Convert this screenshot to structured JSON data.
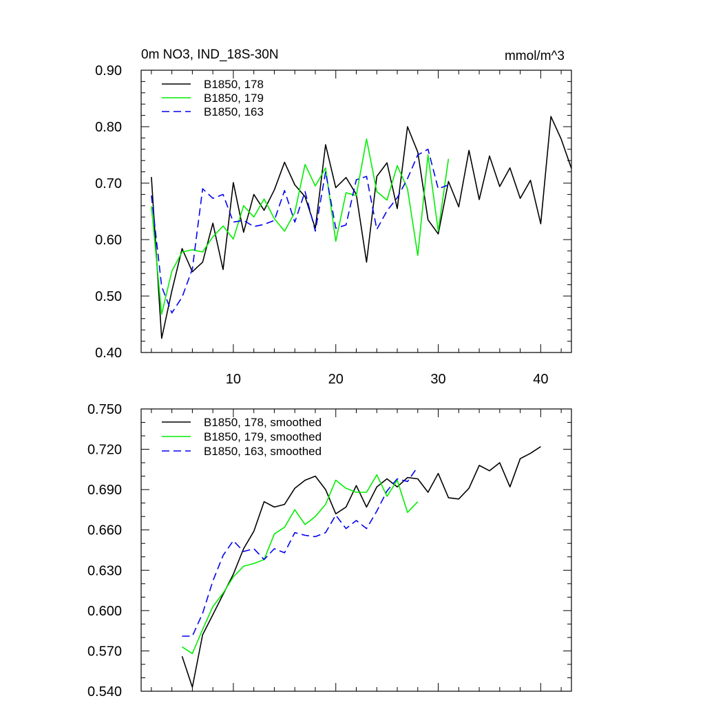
{
  "chart_data": [
    {
      "type": "line",
      "title": "0m NO3, IND_18S-30N",
      "units": "mmol/m^3",
      "xlabel": "",
      "ylabel": "",
      "xlim": [
        1,
        43
      ],
      "ylim": [
        0.4,
        0.9
      ],
      "xticks": [
        10,
        20,
        30,
        40
      ],
      "xtick_labels": [
        "10",
        "20",
        "30",
        "40"
      ],
      "yticks": [
        0.4,
        0.5,
        0.6,
        0.7,
        0.8,
        0.9
      ],
      "ytick_labels": [
        "0.40",
        "0.50",
        "0.60",
        "0.70",
        "0.80",
        "0.90"
      ],
      "legend": "top-left",
      "series": [
        {
          "name": "B1850, 178",
          "color": "#000000",
          "dash": "solid",
          "x": [
            2,
            3,
            4,
            5,
            6,
            7,
            8,
            9,
            10,
            11,
            12,
            13,
            14,
            15,
            16,
            17,
            18,
            19,
            20,
            21,
            22,
            23,
            24,
            25,
            26,
            27,
            28,
            29,
            30,
            31,
            32,
            33,
            34,
            35,
            36,
            37,
            38,
            39,
            40,
            41,
            42,
            43
          ],
          "values": [
            0.711,
            0.425,
            0.509,
            0.584,
            0.543,
            0.56,
            0.629,
            0.547,
            0.701,
            0.613,
            0.68,
            0.652,
            0.688,
            0.737,
            0.697,
            0.676,
            0.62,
            0.768,
            0.692,
            0.71,
            0.68,
            0.56,
            0.712,
            0.736,
            0.655,
            0.8,
            0.755,
            0.635,
            0.61,
            0.703,
            0.658,
            0.758,
            0.671,
            0.748,
            0.694,
            0.727,
            0.673,
            0.705,
            0.628,
            0.818,
            0.778,
            0.726
          ]
        },
        {
          "name": "B1850, 179",
          "color": "#00ee00",
          "dash": "solid",
          "x": [
            2,
            3,
            4,
            5,
            6,
            7,
            8,
            9,
            10,
            11,
            12,
            13,
            14,
            15,
            16,
            17,
            18,
            19,
            20,
            21,
            22,
            23,
            24,
            25,
            26,
            27,
            28,
            29,
            30,
            31
          ],
          "values": [
            0.659,
            0.468,
            0.544,
            0.578,
            0.582,
            0.578,
            0.605,
            0.624,
            0.601,
            0.66,
            0.64,
            0.672,
            0.637,
            0.615,
            0.648,
            0.733,
            0.695,
            0.727,
            0.597,
            0.683,
            0.678,
            0.778,
            0.685,
            0.67,
            0.731,
            0.69,
            0.572,
            0.75,
            0.615,
            0.743
          ]
        },
        {
          "name": "B1850, 163",
          "color": "#0000ee",
          "dash": "dashed",
          "x": [
            2,
            3,
            4,
            5,
            6,
            7,
            8,
            9,
            10,
            11,
            12,
            13,
            14,
            15,
            16,
            17,
            18,
            19,
            20,
            21,
            22,
            23,
            24,
            25,
            26,
            27,
            28,
            29,
            30,
            31
          ],
          "values": [
            0.678,
            0.517,
            0.47,
            0.498,
            0.548,
            0.69,
            0.673,
            0.68,
            0.631,
            0.634,
            0.623,
            0.627,
            0.634,
            0.687,
            0.631,
            0.685,
            0.615,
            0.72,
            0.62,
            0.626,
            0.706,
            0.712,
            0.618,
            0.651,
            0.674,
            0.708,
            0.75,
            0.76,
            0.69,
            0.697
          ]
        }
      ]
    },
    {
      "type": "line",
      "title": "",
      "xlabel": "",
      "ylabel": "",
      "xlim": [
        1,
        43
      ],
      "ylim": [
        0.54,
        0.75
      ],
      "xticks": [
        10,
        20,
        30,
        40
      ],
      "xtick_labels": [],
      "yticks": [
        0.54,
        0.57,
        0.6,
        0.63,
        0.66,
        0.69,
        0.72,
        0.75
      ],
      "ytick_labels": [
        "0.540",
        "0.570",
        "0.600",
        "0.630",
        "0.660",
        "0.690",
        "0.720",
        "0.750"
      ],
      "legend": "top-left",
      "series": [
        {
          "name": "B1850, 178, smoothed",
          "color": "#000000",
          "dash": "solid",
          "x": [
            5,
            6,
            7,
            8,
            9,
            10,
            11,
            12,
            13,
            14,
            15,
            16,
            17,
            18,
            19,
            20,
            21,
            22,
            23,
            24,
            25,
            26,
            27,
            28,
            29,
            30,
            31,
            32,
            33,
            34,
            35,
            36,
            37,
            38,
            39,
            40
          ],
          "values": [
            0.566,
            0.543,
            0.582,
            0.597,
            0.612,
            0.627,
            0.646,
            0.659,
            0.681,
            0.677,
            0.679,
            0.691,
            0.697,
            0.7,
            0.69,
            0.672,
            0.677,
            0.693,
            0.677,
            0.692,
            0.698,
            0.692,
            0.699,
            0.698,
            0.688,
            0.702,
            0.684,
            0.683,
            0.691,
            0.708,
            0.704,
            0.71,
            0.692,
            0.713,
            0.717,
            0.722
          ]
        },
        {
          "name": "B1850, 179, smoothed",
          "color": "#00ee00",
          "dash": "solid",
          "x": [
            5,
            6,
            7,
            8,
            9,
            10,
            11,
            12,
            13,
            14,
            15,
            16,
            17,
            18,
            19,
            20,
            21,
            22,
            23,
            24,
            25,
            26,
            27,
            28
          ],
          "values": [
            0.573,
            0.568,
            0.586,
            0.603,
            0.613,
            0.625,
            0.633,
            0.635,
            0.638,
            0.657,
            0.662,
            0.675,
            0.664,
            0.67,
            0.679,
            0.697,
            0.691,
            0.688,
            0.688,
            0.701,
            0.685,
            0.697,
            0.673,
            0.681
          ]
        },
        {
          "name": "B1850, 163, smoothed",
          "color": "#0000ee",
          "dash": "dashed",
          "x": [
            5,
            6,
            7,
            8,
            9,
            10,
            11,
            12,
            13,
            14,
            15,
            16,
            17,
            18,
            19,
            20,
            21,
            22,
            23,
            24,
            25,
            26,
            27,
            28
          ],
          "values": [
            0.581,
            0.581,
            0.598,
            0.622,
            0.641,
            0.652,
            0.644,
            0.646,
            0.638,
            0.646,
            0.643,
            0.658,
            0.656,
            0.655,
            0.658,
            0.671,
            0.661,
            0.667,
            0.661,
            0.674,
            0.689,
            0.698,
            0.696,
            0.707
          ]
        }
      ]
    }
  ]
}
